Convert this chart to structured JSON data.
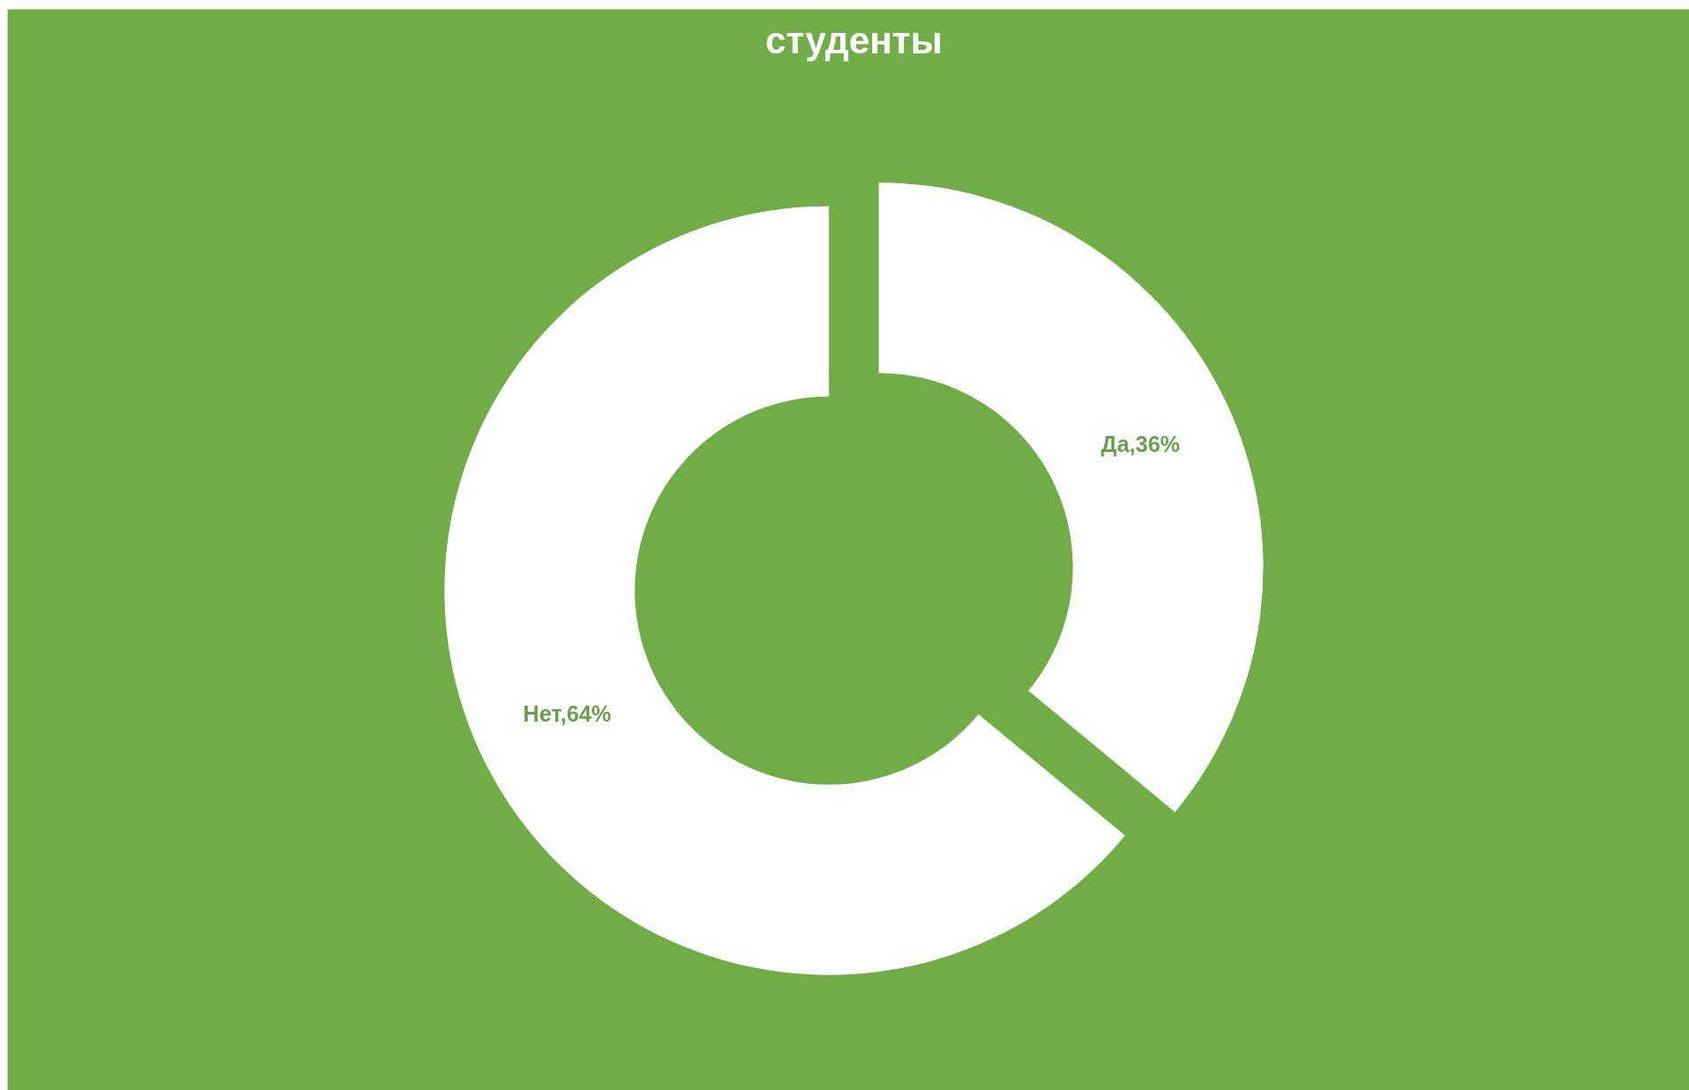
{
  "chart_data": {
    "type": "donut",
    "title": "студенты",
    "categories": [
      "Да",
      "Нет"
    ],
    "values": [
      36,
      64
    ],
    "colors": [
      "#ffffff",
      "#ffffff"
    ],
    "value_labels": [
      ",36%",
      ",64%"
    ]
  }
}
